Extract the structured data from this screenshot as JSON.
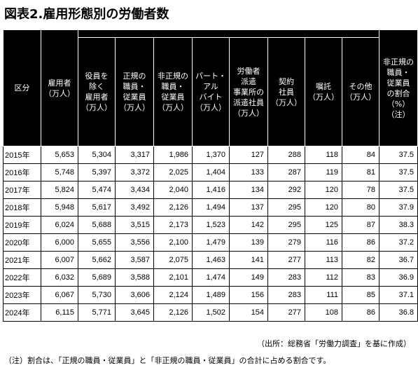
{
  "title": "図表2.雇用形態別の労働者数",
  "headers": [
    [
      "区分"
    ],
    [
      "雇用者",
      "（万人）"
    ],
    [
      "役員を",
      "除く",
      "雇用者",
      "（万人）"
    ],
    [
      "正規の",
      "職員・",
      "従業員",
      "（万人）"
    ],
    [
      "非正規の",
      "職員・",
      "従業員",
      "（万人）"
    ],
    [
      "パート・",
      "アル",
      "バイト",
      "（万人）"
    ],
    [
      "労働者",
      "派遣",
      "事業所の",
      "派遣社員",
      "（万人）"
    ],
    [
      "契約",
      "社員",
      "（万人）"
    ],
    [
      "嘱託",
      "（万人）"
    ],
    [
      "その他",
      "（万人）"
    ],
    [
      "非正規の",
      "職員・",
      "従業員",
      "の割合",
      "（%）",
      "（注）"
    ]
  ],
  "rows": [
    [
      "2015年",
      "5,653",
      "5,304",
      "3,317",
      "1,986",
      "1,370",
      "127",
      "288",
      "118",
      "84",
      "37.5"
    ],
    [
      "2016年",
      "5,748",
      "5,397",
      "3,372",
      "2,025",
      "1,404",
      "133",
      "287",
      "119",
      "81",
      "37.5"
    ],
    [
      "2017年",
      "5,824",
      "5,474",
      "3,434",
      "2,040",
      "1,416",
      "134",
      "292",
      "120",
      "78",
      "37.5"
    ],
    [
      "2018年",
      "5,948",
      "5,617",
      "3,492",
      "2,126",
      "1,494",
      "137",
      "295",
      "120",
      "80",
      "37.9"
    ],
    [
      "2019年",
      "6,024",
      "5,688",
      "3,515",
      "2,173",
      "1,523",
      "142",
      "295",
      "125",
      "87",
      "38.3"
    ],
    [
      "2020年",
      "6,000",
      "5,655",
      "3,556",
      "2,100",
      "1,479",
      "139",
      "279",
      "116",
      "86",
      "37.2"
    ],
    [
      "2021年",
      "6,007",
      "5,662",
      "3,587",
      "2,075",
      "1,463",
      "141",
      "277",
      "113",
      "82",
      "36.7"
    ],
    [
      "2022年",
      "6,032",
      "5,689",
      "3,588",
      "2,101",
      "1,474",
      "149",
      "283",
      "112",
      "83",
      "36.9"
    ],
    [
      "2023年",
      "6,067",
      "5,730",
      "3,606",
      "2,124",
      "1,489",
      "156",
      "283",
      "111",
      "85",
      "37.1"
    ],
    [
      "2024年",
      "6,115",
      "5,771",
      "3,645",
      "2,126",
      "1,502",
      "154",
      "277",
      "108",
      "86",
      "36.8"
    ]
  ],
  "source": "（出所：総務省「労働力調査」を基に作成）",
  "note": "（注）割合は、「正規の職員・従業員」と「非正規の職員・従業員」の合計に占める割合です。"
}
